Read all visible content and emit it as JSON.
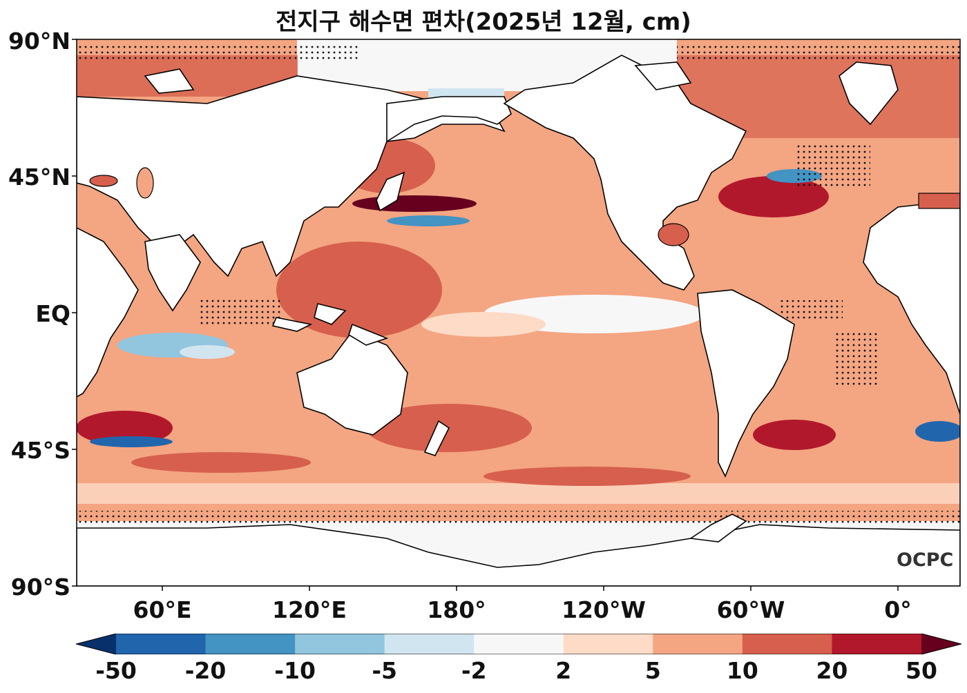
{
  "title": "전지구 해수면 편차(2025년 12월, cm)",
  "logo_text": "OCPC",
  "map": {
    "projection": "equirectangular",
    "central_longitude": 180,
    "lat_labels": [
      "90°N",
      "45°N",
      "EQ",
      "45°S",
      "90°S"
    ],
    "lon_labels": [
      "60°E",
      "120°E",
      "180°",
      "120°W",
      "60°W",
      "0°"
    ],
    "colors": {
      "land": "#ffffff",
      "coast": "#000000",
      "stipple": "#111111"
    }
  },
  "colorbar": {
    "tick_labels": [
      "-50",
      "-20",
      "-10",
      "-5",
      "-2",
      "2",
      "5",
      "10",
      "20",
      "50"
    ],
    "colors": [
      "#08306b",
      "#2166ac",
      "#4393c3",
      "#92c5de",
      "#d1e5f0",
      "#f7f7f7",
      "#fddbc7",
      "#f4a582",
      "#d6604d",
      "#b2182b",
      "#67001f"
    ],
    "extend": "both"
  }
}
